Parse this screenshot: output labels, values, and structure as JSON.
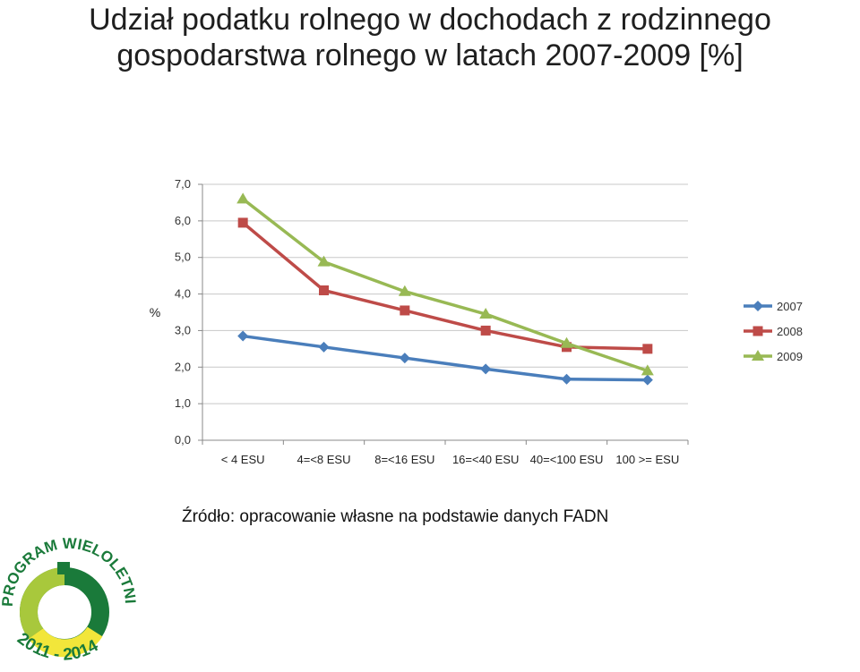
{
  "title_line1": "Udział podatku rolnego w dochodach z rodzinnego",
  "title_line2": "gospodarstwa rolnego w latach 2007-2009 [%]",
  "source": "Źródło: opracowanie własne na podstawie danych FADN",
  "logo": {
    "top_text": "PROGRAM WIELOLETNI",
    "bottom_text": "2011 - 2014",
    "colors": {
      "dark_green": "#1a7a3a",
      "light_green": "#a8c83c",
      "yellow": "#f2e63a"
    }
  },
  "chart_data": {
    "type": "line",
    "ylabel": "%",
    "ylim": [
      0,
      7
    ],
    "yticks": [
      "0,0",
      "1,0",
      "2,0",
      "3,0",
      "4,0",
      "5,0",
      "6,0",
      "7,0"
    ],
    "categories": [
      "< 4 ESU",
      "4=<8 ESU",
      "8=<16 ESU",
      "16=<40 ESU",
      "40=<100 ESU",
      "100 >= ESU"
    ],
    "grid": true,
    "legend_position": "right",
    "series": [
      {
        "name": "2007",
        "color": "#4a7ebb",
        "marker": "diamond",
        "values": [
          2.85,
          2.55,
          2.25,
          1.95,
          1.67,
          1.65
        ]
      },
      {
        "name": "2008",
        "color": "#be4b48",
        "marker": "square",
        "values": [
          5.95,
          4.1,
          3.55,
          3.0,
          2.55,
          2.5
        ]
      },
      {
        "name": "2009",
        "color": "#98b954",
        "marker": "triangle",
        "values": [
          6.6,
          4.88,
          4.07,
          3.45,
          2.65,
          1.9
        ]
      }
    ]
  }
}
